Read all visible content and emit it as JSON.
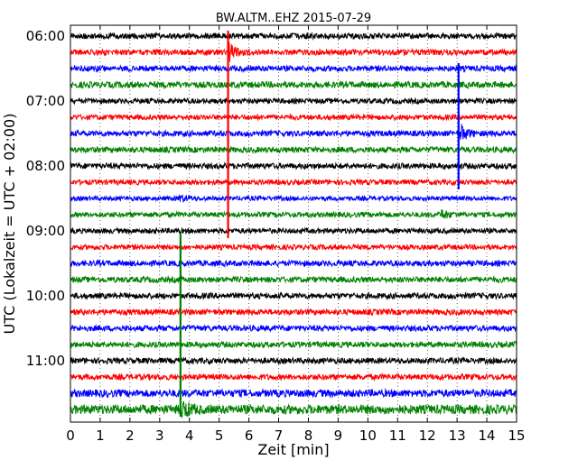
{
  "chart_data": {
    "type": "line",
    "title": "BW.ALTM..EHZ 2015-07-29",
    "xlabel": "Zeit  [min]",
    "ylabel": "UTC (Lokalzeit = UTC + 02:00)",
    "xlim": [
      0,
      15
    ],
    "x_ticks": [
      "0",
      "1",
      "2",
      "3",
      "4",
      "5",
      "6",
      "7",
      "8",
      "9",
      "10",
      "11",
      "12",
      "13",
      "14",
      "15"
    ],
    "y_tick_labels": [
      "06:00",
      "07:00",
      "08:00",
      "09:00",
      "10:00",
      "11:00"
    ],
    "y_tick_rows": [
      0,
      4,
      8,
      12,
      16,
      20
    ],
    "grid": true,
    "row_interval_minutes": 15,
    "start_time": "06:00",
    "series_colors": [
      "#000000",
      "#ff0000",
      "#0000ff",
      "#008000"
    ],
    "traces": [
      {
        "row": 0,
        "time": "06:00",
        "noise": 1.0
      },
      {
        "row": 1,
        "time": "06:15",
        "noise": 1.0,
        "events": [
          {
            "t": 5.35,
            "amp": 9,
            "dur": 0.5
          }
        ]
      },
      {
        "row": 2,
        "time": "06:30",
        "noise": 1.0
      },
      {
        "row": 3,
        "time": "06:45",
        "noise": 1.1
      },
      {
        "row": 4,
        "time": "07:00",
        "noise": 0.9
      },
      {
        "row": 5,
        "time": "07:15",
        "noise": 0.9
      },
      {
        "row": 6,
        "time": "07:30",
        "noise": 1.0,
        "events": [
          {
            "t": 13.15,
            "amp": 8,
            "dur": 0.5
          }
        ]
      },
      {
        "row": 7,
        "time": "07:45",
        "noise": 1.0
      },
      {
        "row": 8,
        "time": "08:00",
        "noise": 1.0
      },
      {
        "row": 9,
        "time": "08:15",
        "noise": 0.9
      },
      {
        "row": 10,
        "time": "08:30",
        "noise": 0.8,
        "events": [
          {
            "t": 3.7,
            "amp": 3,
            "dur": 0.6
          }
        ]
      },
      {
        "row": 11,
        "time": "08:45",
        "noise": 0.9,
        "events": [
          {
            "t": 12.5,
            "amp": 4,
            "dur": 0.5
          }
        ]
      },
      {
        "row": 12,
        "time": "09:00",
        "noise": 0.9
      },
      {
        "row": 13,
        "time": "09:15",
        "noise": 0.9
      },
      {
        "row": 14,
        "time": "09:30",
        "noise": 1.0
      },
      {
        "row": 15,
        "time": "09:45",
        "noise": 1.0
      },
      {
        "row": 16,
        "time": "10:00",
        "noise": 1.0
      },
      {
        "row": 17,
        "time": "10:15",
        "noise": 1.0
      },
      {
        "row": 18,
        "time": "10:30",
        "noise": 1.0
      },
      {
        "row": 19,
        "time": "10:45",
        "noise": 1.0
      },
      {
        "row": 20,
        "time": "11:00",
        "noise": 1.0
      },
      {
        "row": 21,
        "time": "11:15",
        "noise": 1.0
      },
      {
        "row": 22,
        "time": "11:30",
        "noise": 1.3
      },
      {
        "row": 23,
        "time": "11:45",
        "noise": 1.6,
        "events": [
          {
            "t": 3.8,
            "amp": 7,
            "dur": 0.6
          }
        ]
      }
    ],
    "spikes": [
      {
        "t": 5.3,
        "from_row": 0,
        "to_row": 12,
        "color_row": 1
      },
      {
        "t": 13.05,
        "from_row": 2,
        "to_row": 9,
        "color_row": 6
      },
      {
        "t": 3.7,
        "from_row": 12.5,
        "to_row": 23,
        "color_row": 23
      }
    ]
  }
}
